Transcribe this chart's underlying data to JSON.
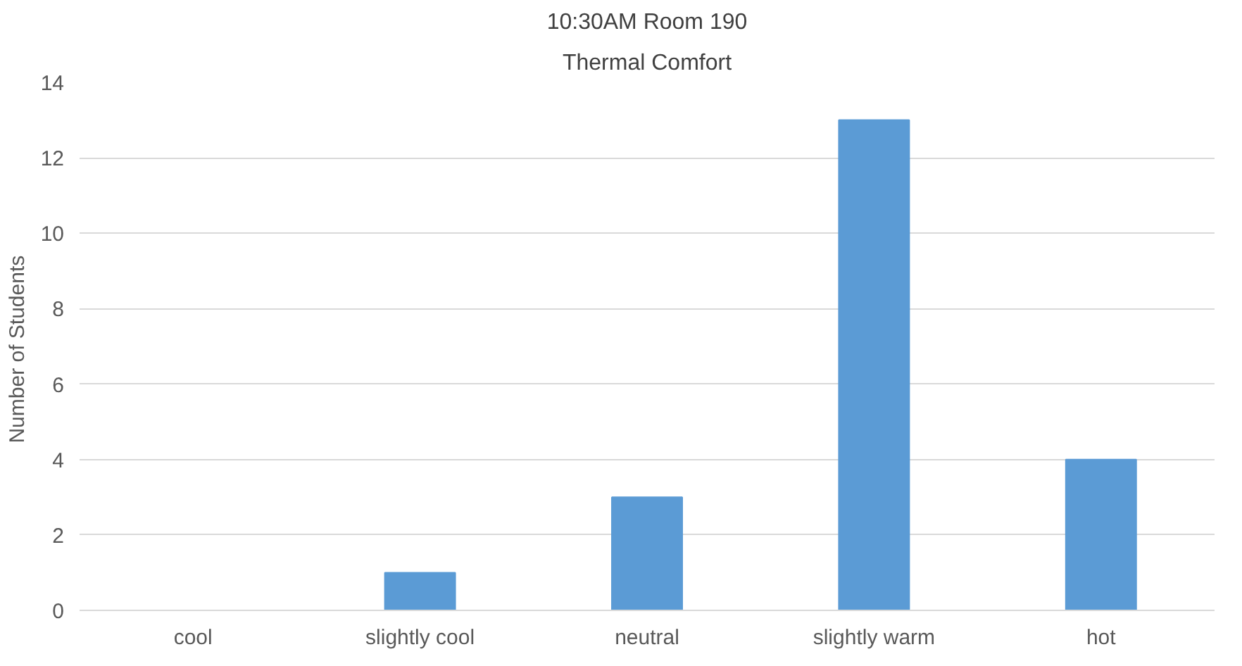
{
  "chart_data": {
    "type": "bar",
    "title": "10:30AM Room 190",
    "subtitle": "Thermal Comfort",
    "ylabel": "Number  of Students",
    "categories": [
      "cool",
      "slightly cool",
      "neutral",
      "slightly warm",
      "hot"
    ],
    "values": [
      0,
      1,
      3,
      13,
      4
    ],
    "color": "#5b9bd5",
    "ylim": [
      0,
      14
    ],
    "yticks": [
      0,
      2,
      4,
      6,
      8,
      10,
      12,
      14
    ],
    "grid": "y"
  }
}
